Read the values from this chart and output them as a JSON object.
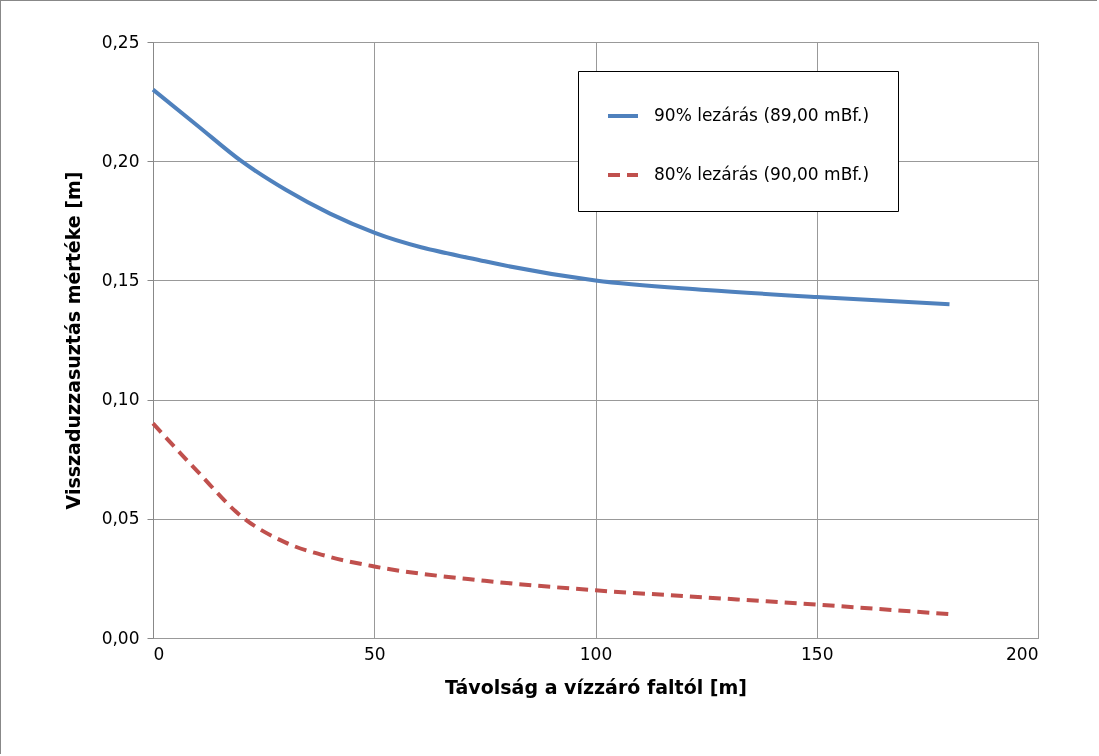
{
  "chart_data": {
    "type": "line",
    "xlabel": "Távolság a vízzáró faltól [m]",
    "ylabel": "Visszaduzzasuztás mértéke [m]",
    "xlim": [
      0,
      200
    ],
    "xticks": [
      0,
      50,
      100,
      150,
      200
    ],
    "ylim": [
      0,
      0.25
    ],
    "yticks": [
      {
        "value": 0,
        "label": "0,00"
      },
      {
        "value": 0.05,
        "label": "0,05"
      },
      {
        "value": 0.1,
        "label": "0,10"
      },
      {
        "value": 0.15,
        "label": "0,15"
      },
      {
        "value": 0.2,
        "label": "0,20"
      },
      {
        "value": 0.25,
        "label": "0,25"
      }
    ],
    "grid": true,
    "legend": "top right",
    "series": [
      {
        "name": "90% lezárás (89,00 mBf.)",
        "color": "#4f81bd",
        "line_style": "solid",
        "x": [
          0,
          10,
          20,
          30,
          40,
          50,
          75,
          100,
          125,
          150,
          180
        ],
        "values": [
          0.23,
          0.215,
          0.2,
          0.188,
          0.178,
          0.17,
          0.158,
          0.15,
          0.146,
          0.143,
          0.14
        ]
      },
      {
        "name": "80% lezárás (90,00 mBf.)",
        "color": "#c0504d",
        "line_style": "dashed",
        "x": [
          0,
          10,
          20,
          30,
          40,
          50,
          75,
          100,
          125,
          150,
          180
        ],
        "values": [
          0.09,
          0.07,
          0.051,
          0.04,
          0.034,
          0.03,
          0.024,
          0.02,
          0.017,
          0.014,
          0.01
        ]
      }
    ]
  }
}
